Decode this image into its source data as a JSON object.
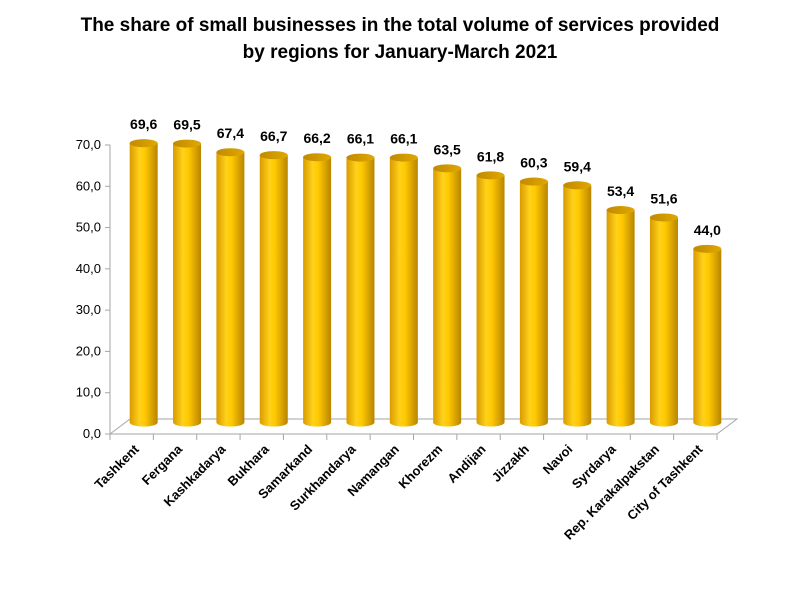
{
  "chart_data": {
    "type": "bar",
    "style": "3d-cylinder",
    "title_lines": [
      "The share of small businesses in the total volume of services provided",
      "by regions for January-March 2021"
    ],
    "xlabel": "",
    "ylabel": "",
    "ylim": [
      0,
      70
    ],
    "yticks": [
      0,
      10,
      20,
      30,
      40,
      50,
      60,
      70
    ],
    "ytick_labels": [
      "0,0",
      "10,0",
      "20,0",
      "30,0",
      "40,0",
      "50,0",
      "60,0",
      "70,0"
    ],
    "grid": false,
    "legend": "none",
    "bar_color": "#FFC000",
    "categories": [
      "Tashkent",
      "Fergana",
      "Kashkadarya",
      "Bukhara",
      "Samarkand",
      "Surkhandarya",
      "Namangan",
      "Khorezm",
      "Andijan",
      "Jizzakh",
      "Navoi",
      "Syrdarya",
      "Rep. Karakalpakstan",
      "City of Tashkent"
    ],
    "values": [
      69.6,
      69.5,
      67.4,
      66.7,
      66.2,
      66.1,
      66.1,
      63.5,
      61.8,
      60.3,
      59.4,
      53.4,
      51.6,
      44.0
    ],
    "data_labels": [
      "69,6",
      "69,5",
      "67,4",
      "66,7",
      "66,2",
      "66,1",
      "66,1",
      "63,5",
      "61,8",
      "60,3",
      "59,4",
      "53,4",
      "51,6",
      "44,0"
    ]
  }
}
